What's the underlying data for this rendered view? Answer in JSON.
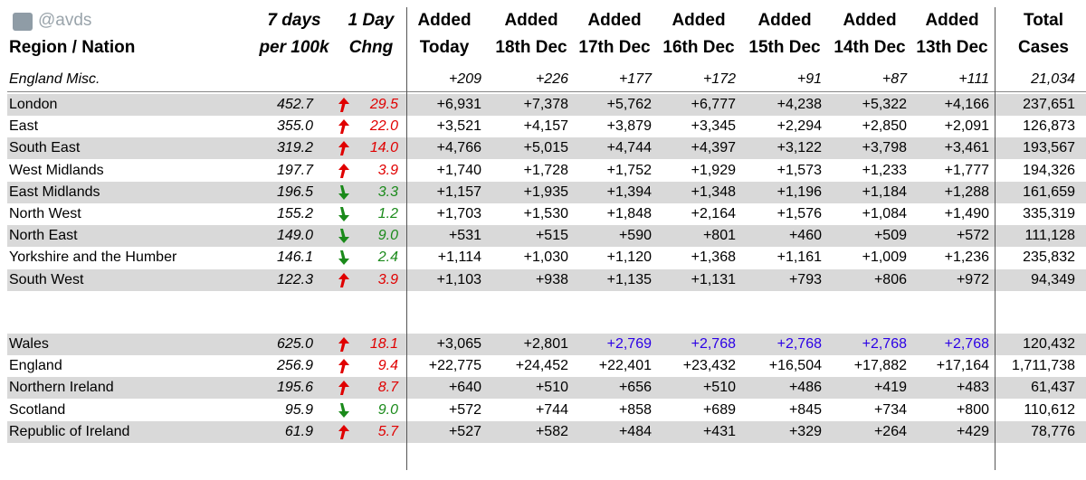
{
  "header": {
    "handle": "@avds",
    "region_label": "Region / Nation",
    "days7_line1": "7 days",
    "days7_line2": "per 100k",
    "chng_line1": "1 Day",
    "chng_line2": "Chng",
    "cols": [
      {
        "line1": "Added",
        "line2": "Today"
      },
      {
        "line1": "Added",
        "line2": "18th Dec"
      },
      {
        "line1": "Added",
        "line2": "17th Dec"
      },
      {
        "line1": "Added",
        "line2": "16th Dec"
      },
      {
        "line1": "Added",
        "line2": "15th Dec"
      },
      {
        "line1": "Added",
        "line2": "14th Dec"
      },
      {
        "line1": "Added",
        "line2": "13th Dec"
      }
    ],
    "total_line1": "Total",
    "total_line2": "Cases"
  },
  "misc": {
    "label": "England Misc.",
    "values": [
      "+209",
      "+226",
      "+177",
      "+172",
      "+91",
      "+87",
      "+111"
    ],
    "total": "21,034"
  },
  "colors": {
    "up": "#e00000",
    "down": "#1a8a1a",
    "estimate": "#2b00e6"
  },
  "regions": [
    {
      "name": "London",
      "per100k": "452.7",
      "dir": "up",
      "chng": "29.5",
      "values": [
        "+6,931",
        "+7,378",
        "+5,762",
        "+6,777",
        "+4,238",
        "+5,322",
        "+4,166"
      ],
      "total": "237,651"
    },
    {
      "name": "East",
      "per100k": "355.0",
      "dir": "up",
      "chng": "22.0",
      "values": [
        "+3,521",
        "+4,157",
        "+3,879",
        "+3,345",
        "+2,294",
        "+2,850",
        "+2,091"
      ],
      "total": "126,873"
    },
    {
      "name": "South East",
      "per100k": "319.2",
      "dir": "up",
      "chng": "14.0",
      "values": [
        "+4,766",
        "+5,015",
        "+4,744",
        "+4,397",
        "+3,122",
        "+3,798",
        "+3,461"
      ],
      "total": "193,567"
    },
    {
      "name": "West Midlands",
      "per100k": "197.7",
      "dir": "up",
      "chng": "3.9",
      "values": [
        "+1,740",
        "+1,728",
        "+1,752",
        "+1,929",
        "+1,573",
        "+1,233",
        "+1,777"
      ],
      "total": "194,326"
    },
    {
      "name": "East Midlands",
      "per100k": "196.5",
      "dir": "down",
      "chng": "3.3",
      "values": [
        "+1,157",
        "+1,935",
        "+1,394",
        "+1,348",
        "+1,196",
        "+1,184",
        "+1,288"
      ],
      "total": "161,659"
    },
    {
      "name": "North West",
      "per100k": "155.2",
      "dir": "down",
      "chng": "1.2",
      "values": [
        "+1,703",
        "+1,530",
        "+1,848",
        "+2,164",
        "+1,576",
        "+1,084",
        "+1,490"
      ],
      "total": "335,319"
    },
    {
      "name": "North East",
      "per100k": "149.0",
      "dir": "down",
      "chng": "9.0",
      "values": [
        "+531",
        "+515",
        "+590",
        "+801",
        "+460",
        "+509",
        "+572"
      ],
      "total": "111,128"
    },
    {
      "name": "Yorkshire and the Humber",
      "per100k": "146.1",
      "dir": "down",
      "chng": "2.4",
      "values": [
        "+1,114",
        "+1,030",
        "+1,120",
        "+1,368",
        "+1,161",
        "+1,009",
        "+1,236"
      ],
      "total": "235,832"
    },
    {
      "name": "South West",
      "per100k": "122.3",
      "dir": "up",
      "chng": "3.9",
      "values": [
        "+1,103",
        "+938",
        "+1,135",
        "+1,131",
        "+793",
        "+806",
        "+972"
      ],
      "total": "94,349"
    }
  ],
  "nations": [
    {
      "name": "Wales",
      "per100k": "625.0",
      "dir": "up",
      "chng": "18.1",
      "values": [
        "+3,065",
        "+2,801",
        "+2,769",
        "+2,768",
        "+2,768",
        "+2,768",
        "+2,768"
      ],
      "estimated_from": 2,
      "total": "120,432"
    },
    {
      "name": "England",
      "per100k": "256.9",
      "dir": "up",
      "chng": "9.4",
      "values": [
        "+22,775",
        "+24,452",
        "+22,401",
        "+23,432",
        "+16,504",
        "+17,882",
        "+17,164"
      ],
      "total": "1,711,738"
    },
    {
      "name": "Northern Ireland",
      "per100k": "195.6",
      "dir": "up",
      "chng": "8.7",
      "values": [
        "+640",
        "+510",
        "+656",
        "+510",
        "+486",
        "+419",
        "+483"
      ],
      "total": "61,437"
    },
    {
      "name": "Scotland",
      "per100k": "95.9",
      "dir": "down",
      "chng": "9.0",
      "values": [
        "+572",
        "+744",
        "+858",
        "+689",
        "+845",
        "+734",
        "+800"
      ],
      "total": "110,612"
    },
    {
      "name": "Republic of Ireland",
      "per100k": "61.9",
      "dir": "up",
      "chng": "5.7",
      "values": [
        "+527",
        "+582",
        "+484",
        "+431",
        "+329",
        "+264",
        "+429"
      ],
      "total": "78,776"
    }
  ]
}
